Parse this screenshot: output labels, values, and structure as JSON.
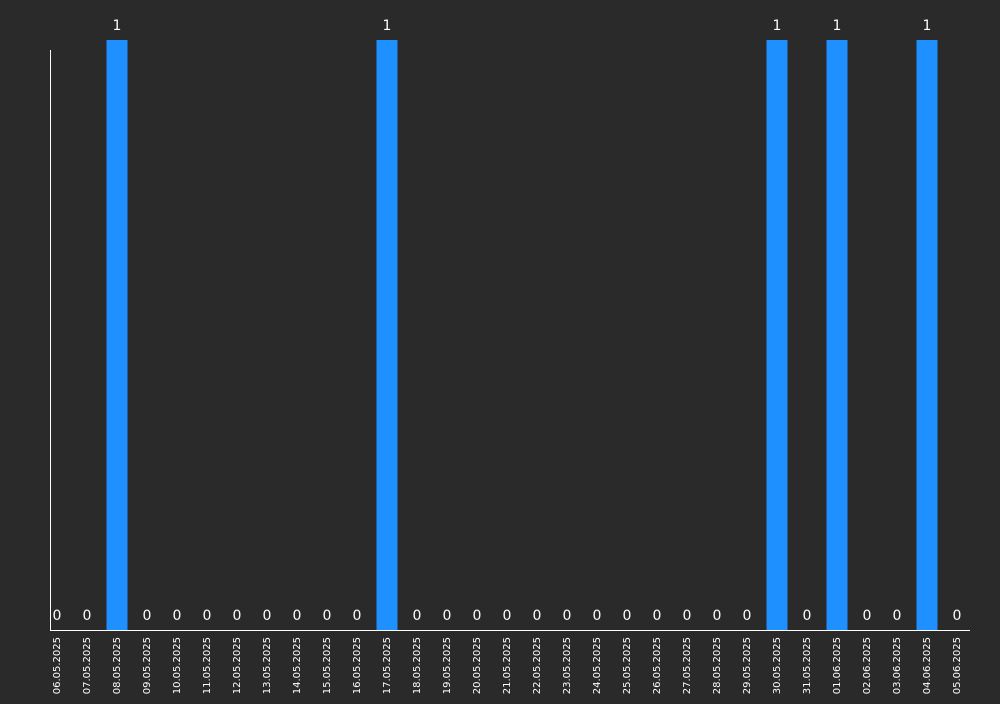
{
  "chart_data": {
    "type": "bar",
    "title": "",
    "xlabel": "",
    "ylabel": "",
    "ylim": [
      0,
      1
    ],
    "grid": false,
    "colors": {
      "background": "#2a2a2a",
      "bar": "#1e90ff",
      "axis": "#ffffff",
      "text": "#ffffff"
    },
    "categories": [
      "06.05.2025",
      "07.05.2025",
      "08.05.2025",
      "09.05.2025",
      "10.05.2025",
      "11.05.2025",
      "12.05.2025",
      "13.05.2025",
      "14.05.2025",
      "15.05.2025",
      "16.05.2025",
      "17.05.2025",
      "18.05.2025",
      "19.05.2025",
      "20.05.2025",
      "21.05.2025",
      "22.05.2025",
      "23.05.2025",
      "24.05.2025",
      "25.05.2025",
      "26.05.2025",
      "27.05.2025",
      "28.05.2025",
      "29.05.2025",
      "30.05.2025",
      "31.05.2025",
      "01.06.2025",
      "02.06.2025",
      "03.06.2025",
      "04.06.2025",
      "05.06.2025"
    ],
    "values": [
      0,
      0,
      1,
      0,
      0,
      0,
      0,
      0,
      0,
      0,
      0,
      1,
      0,
      0,
      0,
      0,
      0,
      0,
      0,
      0,
      0,
      0,
      0,
      0,
      1,
      0,
      1,
      0,
      0,
      1,
      0
    ]
  }
}
